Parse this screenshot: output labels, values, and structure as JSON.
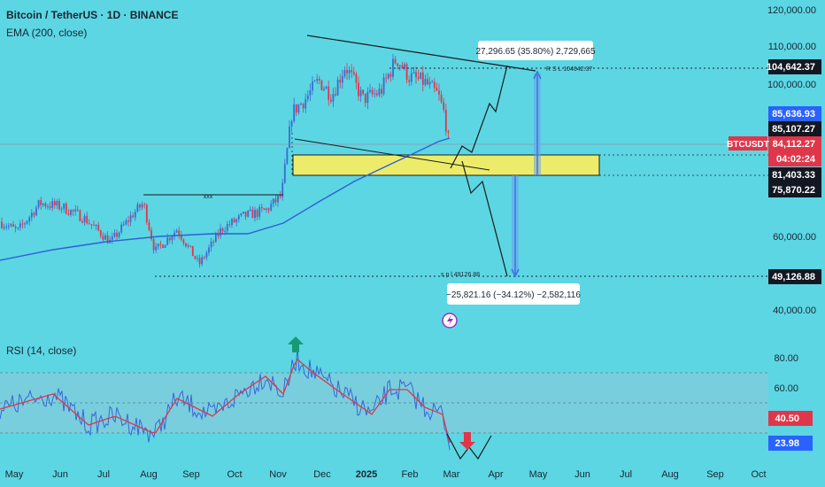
{
  "header": {
    "title": "Bitcoin / TetherUS · 1D · BINANCE",
    "ema_label": "EMA (200, close)",
    "rsi_label": "RSI (14, close)"
  },
  "colors": {
    "background": "#5cd6e3",
    "candle_up": "#3b6bd1",
    "candle_down": "#e0364a",
    "ema": "#2f5fd6",
    "zone": "#ecec6a",
    "rsi_line": "#3a66d6",
    "rsi_ma": "#e0364a",
    "arrow_up": "#169a72",
    "arrow_down": "#e0364a",
    "price_tag": "#e0364a"
  },
  "chart_data": {
    "type": "candlestick",
    "x_ticks": [
      "May",
      "Jun",
      "Jul",
      "Aug",
      "Sep",
      "Oct",
      "Nov",
      "Dec",
      "2025",
      "Feb",
      "Mar",
      "Apr",
      "May",
      "Jun",
      "Jul",
      "Aug",
      "Sep",
      "Oct"
    ],
    "y_ticks": [
      "120,000.00",
      "110,000.00",
      "100,000.00",
      "60,000.00",
      "40,000.00"
    ],
    "price_tags": [
      {
        "label": "104,642.37",
        "kind": "dark"
      },
      {
        "label": "85,636.93",
        "kind": "blue"
      },
      {
        "label": "85,107.27",
        "kind": "dark"
      },
      {
        "label": "84,112.27",
        "kind": "red"
      },
      {
        "label": "04:02:24",
        "kind": "red"
      },
      {
        "label": "81,403.33",
        "kind": "dark"
      },
      {
        "label": "75,870.22",
        "kind": "dark"
      },
      {
        "label": "49,126.88",
        "kind": "dark"
      }
    ],
    "symbol_tag": "BTCUSDT",
    "ema_period": 200,
    "key_levels": {
      "resistance": 104642.37,
      "current_price": 84112.27,
      "zone_top": 85107.27,
      "zone_bottom": 81403.33,
      "support": 49126.88
    },
    "annotations": {
      "target_up": "27,296.65 (35.80%) 2,729,665",
      "target_down": "−25,821.16 (−34.12%) −2,582,116",
      "rsl_label": "R S L 104642.37",
      "spl_label": "s p l 49126.88",
      "range_label": "xxx"
    },
    "rsi": {
      "period": 14,
      "y_ticks": [
        "80.00",
        "60.00"
      ],
      "tags": [
        {
          "label": "40.50",
          "kind": "red"
        },
        {
          "label": "23.98",
          "kind": "blue"
        }
      ],
      "current_value": 40.5
    }
  }
}
